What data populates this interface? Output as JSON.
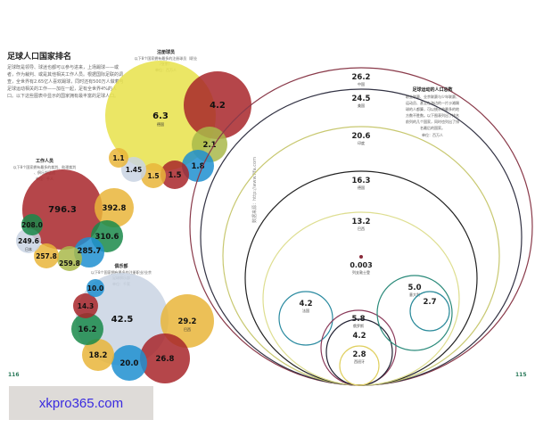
{
  "title": "足球人口国家排名",
  "intro": "足球既是领导、球迷也都可以参与进来，上场踢球——或者，作为裁判、或是其他相关工作人员。根据国际足联的调查，全世界有2.65亿人喜欢踢球，同时还有500万人做着与足球运动相关的工作——加在一起，足有全世界4%的人口。以下这些图表中显示的国家拥有最丰富的足球人口。",
  "source": "数据来源：http://www.fifa.com",
  "page_left": "116",
  "page_right": "115",
  "watermark": "xkpro365.com",
  "colors": {
    "yellow": "#e8e24a",
    "red": "#a8262a",
    "olive": "#a9b84a",
    "green": "#1a8a4a",
    "blue": "#1f8fd0",
    "gold": "#e9b53a",
    "grey": "#c9d3e3",
    "page_number": "#2a7a5a",
    "watermark_text": "#3a2be0"
  },
  "chart_data": [
    {
      "type": "bubble",
      "title": "注册球员",
      "subtitle": "以下8个国家拥有最多的注册球员（职业/业余）",
      "unit": "单位：百万人",
      "points": [
        {
          "value": "6.3",
          "label": "德国",
          "color": "yellow"
        },
        {
          "value": "4.2",
          "label": "",
          "color": "red"
        },
        {
          "value": "2.1",
          "label": "",
          "color": "olive"
        },
        {
          "value": "1.8",
          "label": "",
          "color": "blue"
        },
        {
          "value": "1.5",
          "label": "",
          "color": "red"
        },
        {
          "value": "1.5",
          "label": "",
          "color": "gold"
        },
        {
          "value": "1.45",
          "label": "",
          "color": "grey"
        },
        {
          "value": "1.1",
          "label": "",
          "color": "gold"
        }
      ]
    },
    {
      "type": "bubble",
      "title": "工作人员",
      "subtitle": "以下8个国家拥有最多的裁判、助理裁判、俱乐部官员",
      "unit": "单位：千人",
      "points": [
        {
          "value": "796.3",
          "label": "",
          "color": "red"
        },
        {
          "value": "392.8",
          "label": "",
          "color": "gold"
        },
        {
          "value": "310.6",
          "label": "",
          "color": "green"
        },
        {
          "value": "285.7",
          "label": "",
          "color": "blue"
        },
        {
          "value": "259.8",
          "label": "",
          "color": "olive"
        },
        {
          "value": "257.8",
          "label": "",
          "color": "gold"
        },
        {
          "value": "249.6",
          "label": "日本",
          "color": "grey"
        },
        {
          "value": "208.0",
          "label": "",
          "color": "green"
        }
      ]
    },
    {
      "type": "bubble",
      "title": "俱乐部",
      "subtitle": "以下8个国家拥有最多的注册职业/业余足球俱乐部",
      "unit": "单位：千家",
      "points": [
        {
          "value": "42.5",
          "label": "",
          "color": "grey"
        },
        {
          "value": "29.2",
          "label": "巴西",
          "color": "gold"
        },
        {
          "value": "26.8",
          "label": "",
          "color": "red"
        },
        {
          "value": "20.0",
          "label": "",
          "color": "blue"
        },
        {
          "value": "18.2",
          "label": "",
          "color": "gold"
        },
        {
          "value": "16.2",
          "label": "",
          "color": "green"
        },
        {
          "value": "14.3",
          "label": "",
          "color": "red"
        },
        {
          "value": "10.0",
          "label": "",
          "color": "blue"
        }
      ]
    },
    {
      "type": "nested-circles",
      "title": "足球运动的人口总数",
      "subtitle": "职业联赛、业余联赛与少年联赛、运动员、甚至在海边的一片沙滩踢球的人都算，可以统计的最多的地方数不胜数。以下图表列出了排名前列的几个国家，同时也列出了排名最后的国家。",
      "unit": "单位：百万人",
      "points": [
        {
          "value": "26.2",
          "label": "中国",
          "stroke": "#8a3a4a"
        },
        {
          "value": "24.5",
          "label": "美国",
          "stroke": "#333344"
        },
        {
          "value": "20.6",
          "label": "印度",
          "stroke": "#c8c870"
        },
        {
          "value": "16.3",
          "label": "德国",
          "stroke": "#222222"
        },
        {
          "value": "13.2",
          "label": "巴西",
          "stroke": "#dede90"
        },
        {
          "value": "0.003",
          "label": "列支敦士登",
          "stroke": "#8a2a3a"
        },
        {
          "value": "4.2",
          "label": "法国",
          "stroke": "#2a8aa0"
        },
        {
          "value": "5.8",
          "label": "俄罗斯",
          "stroke": "#8a3a5a"
        },
        {
          "value": "4.2",
          "label": "",
          "stroke": "#222233"
        },
        {
          "value": "2.8",
          "label": "西班牙",
          "stroke": "#e0d060"
        },
        {
          "value": "5.0",
          "label": "意大利",
          "stroke": "#2a8a7a"
        },
        {
          "value": "2.7",
          "label": "",
          "stroke": "#2a8a9a"
        }
      ]
    }
  ]
}
